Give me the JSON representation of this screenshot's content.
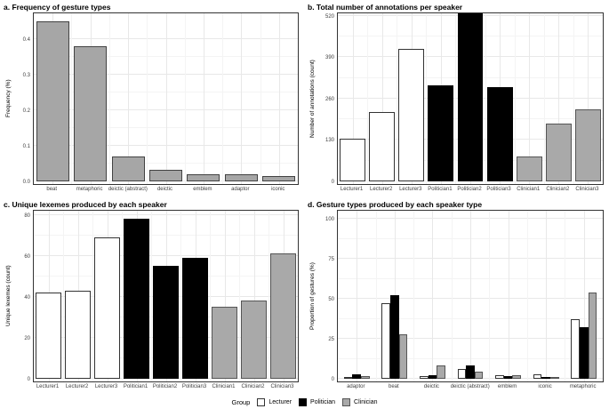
{
  "figure": {
    "background": "#ffffff"
  },
  "colors": {
    "lecturer_fill": "#ffffff",
    "lecturer_stroke": "#333333",
    "politician_fill": "#000000",
    "politician_stroke": "#000000",
    "clinician_fill": "#a9a9a9",
    "clinician_stroke": "#555555",
    "grid_major": "#e8e8e8",
    "grid_minor": "#f4f4f4",
    "panel_border": "#333333"
  },
  "legend": {
    "title": "Group",
    "entries": [
      {
        "name": "Lecturer",
        "label": "Lecturer",
        "fill": "#ffffff",
        "stroke": "#333333"
      },
      {
        "name": "Politician",
        "label": "Politician",
        "fill": "#000000",
        "stroke": "#000000"
      },
      {
        "name": "Clinician",
        "label": "Clinician",
        "fill": "#a9a9a9",
        "stroke": "#555555"
      }
    ]
  },
  "chart_data": [
    {
      "id": "a",
      "type": "bar",
      "title": "a. Frequency of gesture types",
      "ylabel": "Frequency (%)",
      "categories": [
        "beat",
        "metaphoric",
        "deictic (abstract)",
        "deictic",
        "emblem",
        "adaptor",
        "iconic"
      ],
      "values": [
        0.45,
        0.38,
        0.071,
        0.032,
        0.021,
        0.019,
        0.014
      ],
      "yticks": [
        0,
        0.1,
        0.2,
        0.3,
        0.4
      ],
      "ytick_labels": [
        "0.0",
        "0.1",
        "0.2",
        "0.3",
        "0.4"
      ],
      "ylim": [
        0,
        0.472
      ],
      "bar_fill": "#a6a6a6",
      "bar_stroke": "#424242",
      "grid": true,
      "legend_position": "none"
    },
    {
      "id": "b",
      "type": "bar",
      "title": "b. Total number of annotations per speaker",
      "ylabel": "Number of annotations (count)",
      "categories": [
        "Lecturer1",
        "Lecturer2",
        "Lecturer3",
        "Politician1",
        "Politician2",
        "Politician3",
        "Clinician1",
        "Clinician2",
        "Clinician3"
      ],
      "values": [
        135,
        217,
        415,
        303,
        528,
        295,
        77,
        182,
        227
      ],
      "groups": [
        "Lecturer",
        "Lecturer",
        "Lecturer",
        "Politician",
        "Politician",
        "Politician",
        "Clinician",
        "Clinician",
        "Clinician"
      ],
      "yticks": [
        0,
        130,
        260,
        390,
        520
      ],
      "ytick_labels": [
        "0",
        "130",
        "260",
        "390",
        "520"
      ],
      "ylim": [
        0,
        528
      ],
      "grid": true,
      "legend_position": "bottom-shared"
    },
    {
      "id": "c",
      "type": "bar",
      "title": "c. Unique lexemes produced by each speaker",
      "ylabel": "Unique lexemes (count)",
      "categories": [
        "Lecturer1",
        "Lecturer2",
        "Lecturer3",
        "Politician1",
        "Politician2",
        "Politician3",
        "Clinician1",
        "Clinician2",
        "Clinician3"
      ],
      "values": [
        42,
        43,
        69,
        78,
        55,
        59,
        35,
        38,
        61
      ],
      "groups": [
        "Lecturer",
        "Lecturer",
        "Lecturer",
        "Politician",
        "Politician",
        "Politician",
        "Clinician",
        "Clinician",
        "Clinician"
      ],
      "yticks": [
        0,
        20,
        40,
        60,
        80
      ],
      "ytick_labels": [
        "0",
        "20",
        "40",
        "60",
        "80"
      ],
      "ylim": [
        0,
        82
      ],
      "grid": true,
      "legend_position": "bottom-shared"
    },
    {
      "id": "d",
      "type": "grouped_bar",
      "title": "d. Gesture types produced by each speaker type",
      "ylabel": "Proportion of gestures (%)",
      "categories": [
        "adaptor",
        "beat",
        "deictic",
        "deictic (abstract)",
        "emblem",
        "iconic",
        "metaphoric"
      ],
      "series": [
        {
          "name": "Lecturer",
          "values": [
            1.2,
            47.5,
            1.5,
            6,
            2.5,
            3,
            37
          ]
        },
        {
          "name": "Politician",
          "values": [
            2.8,
            52,
            2.5,
            8.5,
            1.5,
            0.7,
            32
          ]
        },
        {
          "name": "Clinician",
          "values": [
            1.8,
            28,
            8.5,
            4.5,
            2,
            1.2,
            54
          ]
        }
      ],
      "yticks": [
        0,
        25,
        50,
        75,
        100
      ],
      "ytick_labels": [
        "0",
        "25",
        "50",
        "75",
        "100"
      ],
      "ylim": [
        0,
        105
      ],
      "grid": true,
      "legend_position": "bottom-shared"
    }
  ]
}
